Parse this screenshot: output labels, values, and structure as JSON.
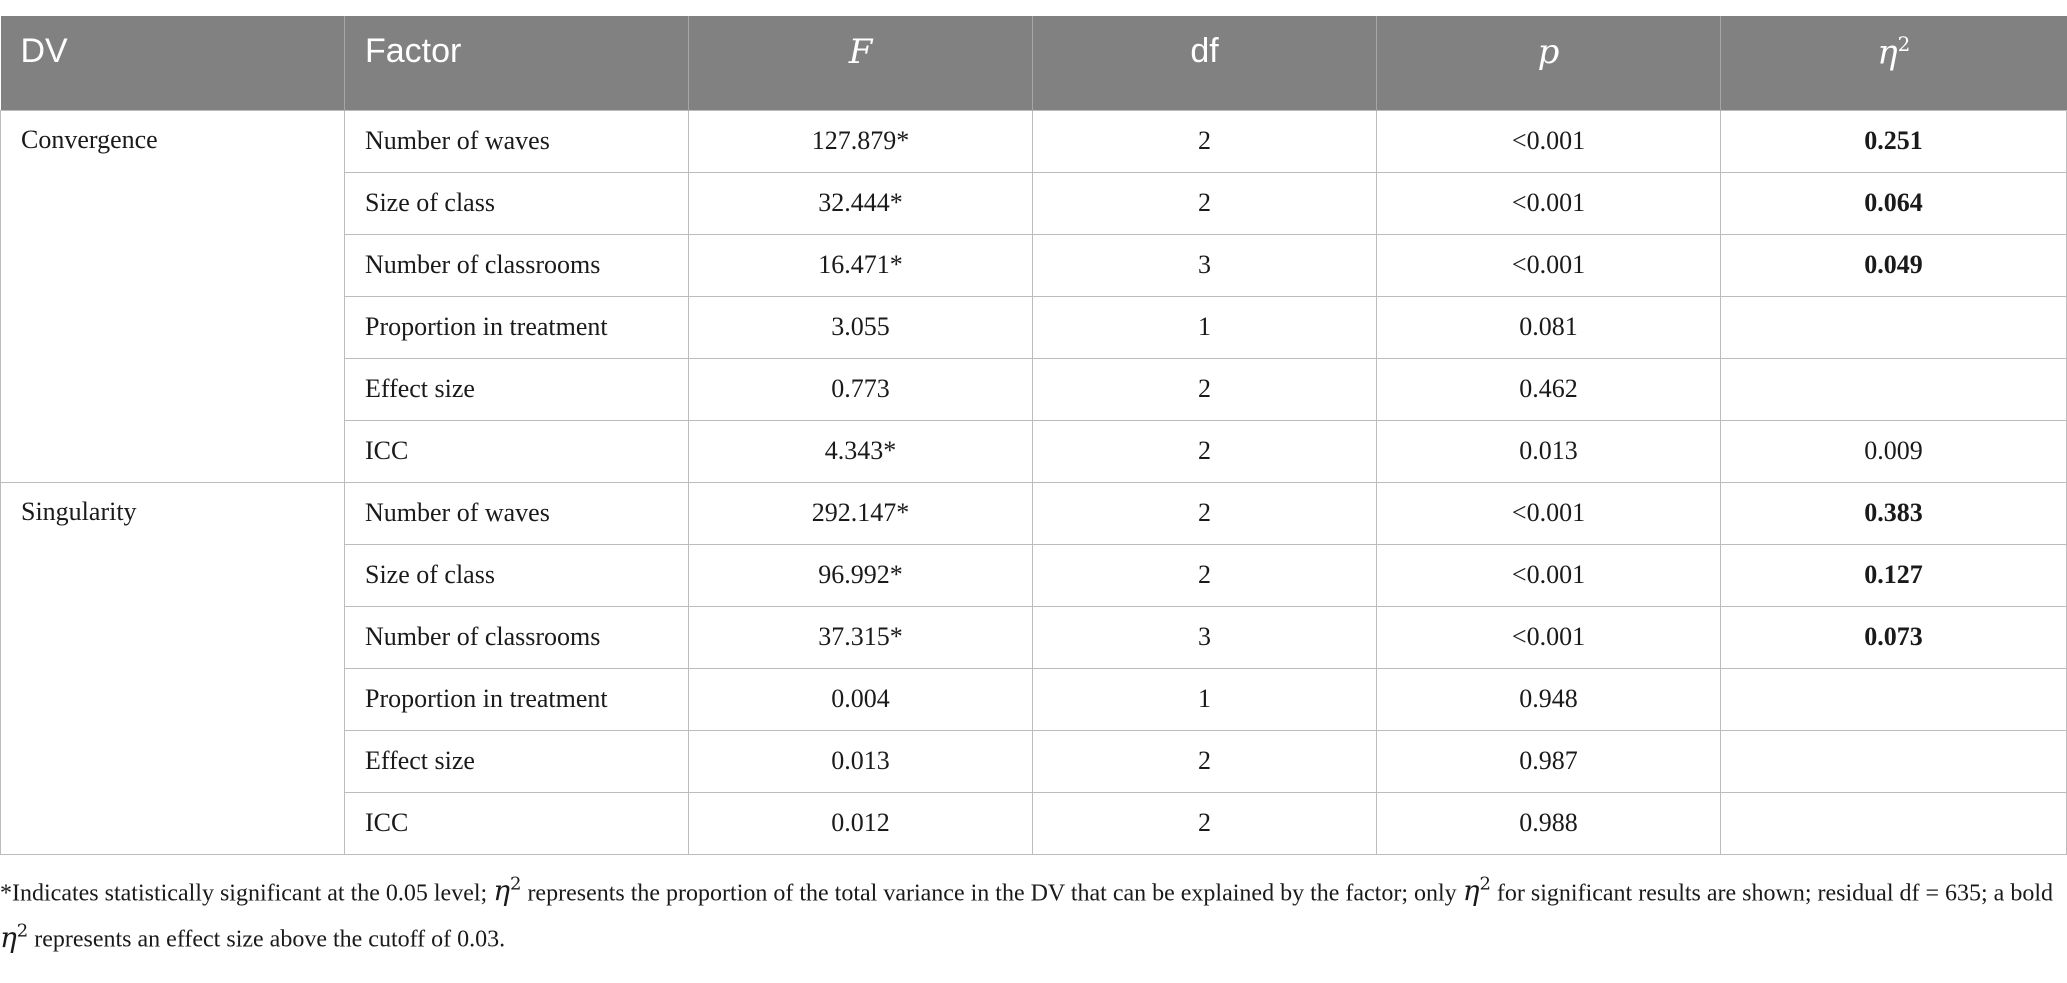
{
  "header": {
    "dv": "DV",
    "factor": "Factor",
    "f": "F",
    "df": "df",
    "p": "p",
    "eta": "η",
    "eta_sup": "2"
  },
  "groups": [
    {
      "dv": "Convergence",
      "rows": [
        {
          "factor": "Number of waves",
          "f": "127.879*",
          "df": "2",
          "p": "<0.001",
          "eta": "0.251",
          "bold": true
        },
        {
          "factor": "Size of class",
          "f": "32.444*",
          "df": "2",
          "p": "<0.001",
          "eta": "0.064",
          "bold": true
        },
        {
          "factor": "Number of classrooms",
          "f": "16.471*",
          "df": "3",
          "p": "<0.001",
          "eta": "0.049",
          "bold": true
        },
        {
          "factor": "Proportion in treatment",
          "f": "3.055",
          "df": "1",
          "p": "0.081",
          "eta": "",
          "bold": false
        },
        {
          "factor": "Effect size",
          "f": "0.773",
          "df": "2",
          "p": "0.462",
          "eta": "",
          "bold": false
        },
        {
          "factor": "ICC",
          "f": "4.343*",
          "df": "2",
          "p": "0.013",
          "eta": "0.009",
          "bold": false
        }
      ]
    },
    {
      "dv": "Singularity",
      "rows": [
        {
          "factor": "Number of waves",
          "f": "292.147*",
          "df": "2",
          "p": "<0.001",
          "eta": "0.383",
          "bold": true
        },
        {
          "factor": "Size of class",
          "f": "96.992*",
          "df": "2",
          "p": "<0.001",
          "eta": "0.127",
          "bold": true
        },
        {
          "factor": "Number of classrooms",
          "f": "37.315*",
          "df": "3",
          "p": "<0.001",
          "eta": "0.073",
          "bold": true
        },
        {
          "factor": "Proportion in treatment",
          "f": "0.004",
          "df": "1",
          "p": "0.948",
          "eta": "",
          "bold": false
        },
        {
          "factor": "Effect size",
          "f": "0.013",
          "df": "2",
          "p": "0.987",
          "eta": "",
          "bold": false
        },
        {
          "factor": "ICC",
          "f": "0.012",
          "df": "2",
          "p": "0.988",
          "eta": "",
          "bold": false
        }
      ]
    }
  ],
  "note": {
    "p1": "*Indicates statistically significant at the 0.05 level; ",
    "p2": " represents the proportion of the total variance in the DV that can be explained by the factor; only ",
    "p3": " for significant results are shown; residual df = 635; a bold ",
    "p4": " represents an effect size above the cutoff of 0.03."
  }
}
